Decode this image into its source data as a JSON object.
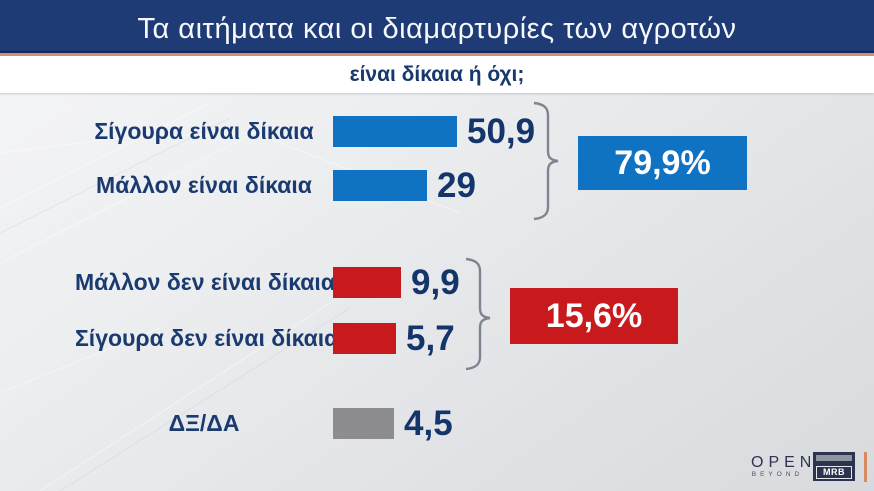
{
  "header": {
    "title": "Τα αιτήματα και οι διαμαρτυρίες των αγροτών",
    "subtitle": "είναι δίκαια ή όχι;"
  },
  "chart_data": {
    "type": "bar",
    "orientation": "horizontal",
    "title": "Τα αιτήματα και οι διαμαρτυρίες των αγροτών",
    "subtitle": "είναι δίκαια ή όχι;",
    "categories": [
      "Σίγουρα είναι δίκαια",
      "Μάλλον είναι δίκαια",
      "Μάλλον δεν είναι δίκαια",
      "Σίγουρα δεν είναι δίκαια",
      "ΔΞ/ΔΑ"
    ],
    "values": [
      50.9,
      29,
      9.9,
      5.7,
      4.5
    ],
    "value_labels": [
      "50,9",
      "29",
      "9,9",
      "5,7",
      "4,5"
    ],
    "bar_colors": [
      "#0f72c2",
      "#0f72c2",
      "#c8191d",
      "#c8191d",
      "#8d8d8f"
    ],
    "groups": [
      {
        "label": "79,9%",
        "value": 79.9,
        "color": "#0f72c2",
        "includes": [
          "Σίγουρα είναι δίκαια",
          "Μάλλον είναι δίκαια"
        ]
      },
      {
        "label": "15,6%",
        "value": 15.6,
        "color": "#c8191d",
        "includes": [
          "Μάλλον δεν είναι δίκαια",
          "Σίγουρα δεν είναι δίκαια"
        ]
      }
    ],
    "grid": false,
    "legend": false
  },
  "footer": {
    "open_word": "OPEN",
    "open_sub": "BEYOND",
    "mrb": "MRB"
  },
  "colors": {
    "header_bg": "#1e3b76",
    "salmon_line": "#cc8f7e",
    "label_text": "#1a3a70",
    "value_text": "#14356b",
    "blue": "#0f72c2",
    "red": "#c8191d",
    "gray": "#8d8d8f",
    "bracket": "#7d8591",
    "footer_orange": "#d98a5f"
  }
}
